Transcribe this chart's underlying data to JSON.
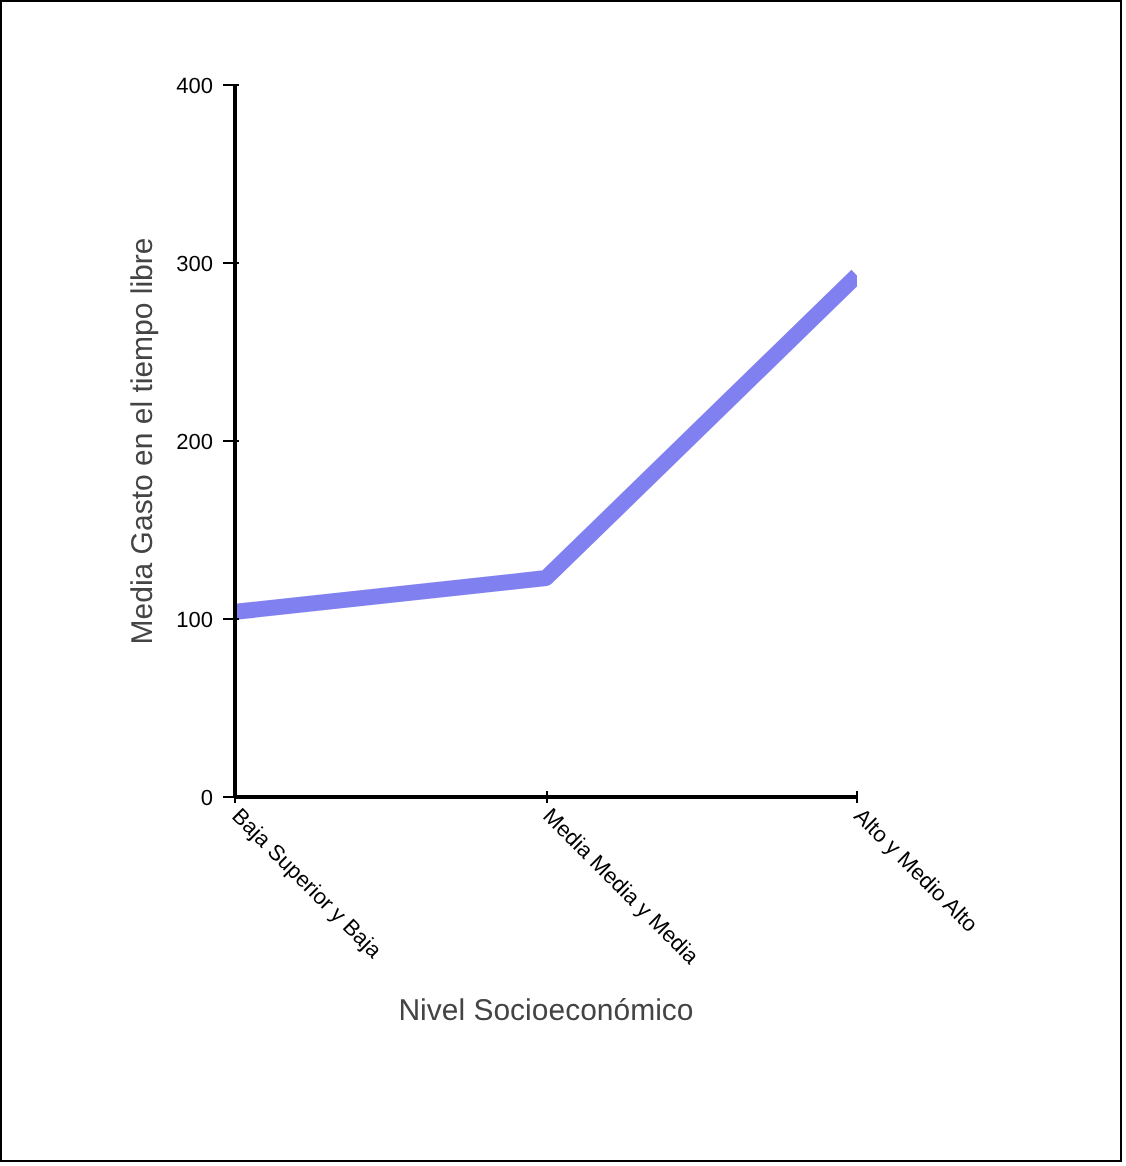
{
  "chart_data": {
    "type": "line",
    "xlabel": "Nivel Socioeconómico",
    "ylabel": "Media Gasto en el tiempo libre",
    "categories": [
      "Baja Superior y Baja",
      "Media Media y Media",
      "Alto y Medio Alto"
    ],
    "series": [
      {
        "color": "#8080f0",
        "values": [
          104,
          123,
          293
        ]
      }
    ],
    "ylim": [
      0,
      400
    ],
    "yticks": [
      0,
      100,
      200,
      300,
      400
    ],
    "line_style": "solid"
  }
}
